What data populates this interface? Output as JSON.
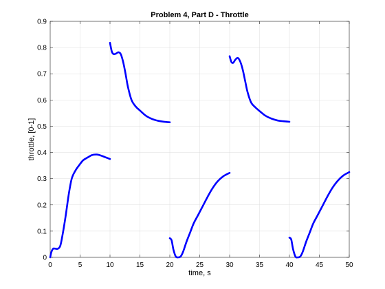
{
  "chart_data": {
    "type": "line",
    "title": "Problem 4, Part D - Throttle",
    "xlabel": "time, s",
    "ylabel": "throttle, [0-1]",
    "xlim": [
      0,
      50
    ],
    "ylim": [
      0,
      0.9
    ],
    "xticks": [
      0,
      5,
      10,
      15,
      20,
      25,
      30,
      35,
      40,
      45,
      50
    ],
    "yticks": [
      0,
      0.1,
      0.2,
      0.3,
      0.4,
      0.5,
      0.6,
      0.7,
      0.8,
      0.9
    ],
    "grid": true,
    "color": "#0000ff",
    "segments": [
      {
        "x": [
          0,
          0.2,
          0.5,
          0.9,
          1.3,
          1.7,
          2.1,
          2.6,
          3.1,
          3.6,
          4.2,
          4.8,
          5.5,
          6.2,
          7.0,
          7.8,
          8.5,
          9.2,
          10.0
        ],
        "y": [
          0.0,
          0.02,
          0.033,
          0.033,
          0.033,
          0.045,
          0.09,
          0.16,
          0.24,
          0.3,
          0.33,
          0.35,
          0.37,
          0.38,
          0.39,
          0.392,
          0.388,
          0.382,
          0.375
        ]
      },
      {
        "x": [
          10.0,
          10.3,
          10.6,
          11.0,
          11.4,
          11.8,
          12.2,
          12.6,
          13.0,
          13.6,
          14.3,
          15.0,
          16.0,
          17.0,
          18.0,
          19.0,
          20.0
        ],
        "y": [
          0.818,
          0.785,
          0.775,
          0.777,
          0.782,
          0.775,
          0.745,
          0.7,
          0.65,
          0.6,
          0.575,
          0.56,
          0.54,
          0.528,
          0.521,
          0.517,
          0.515
        ]
      },
      {
        "x": [
          20.0,
          20.3,
          20.6,
          21.0,
          21.4,
          21.8,
          22.2,
          22.8,
          23.4,
          24.0,
          24.7,
          25.5,
          26.3,
          27.1,
          28.0,
          29.0,
          30.0
        ],
        "y": [
          0.073,
          0.065,
          0.03,
          0.003,
          0.0,
          0.003,
          0.02,
          0.06,
          0.095,
          0.13,
          0.16,
          0.195,
          0.23,
          0.262,
          0.29,
          0.31,
          0.322
        ]
      },
      {
        "x": [
          30.0,
          30.3,
          30.6,
          31.0,
          31.4,
          31.8,
          32.2,
          32.6,
          33.0,
          33.6,
          34.3,
          35.0,
          36.0,
          37.0,
          38.0,
          39.0,
          40.0
        ],
        "y": [
          0.767,
          0.745,
          0.742,
          0.755,
          0.76,
          0.745,
          0.715,
          0.672,
          0.63,
          0.59,
          0.572,
          0.558,
          0.54,
          0.529,
          0.522,
          0.519,
          0.517
        ]
      },
      {
        "x": [
          40.0,
          40.3,
          40.6,
          41.0,
          41.4,
          41.8,
          42.2,
          42.8,
          43.4,
          44.0,
          44.7,
          45.5,
          46.3,
          47.1,
          48.0,
          49.0,
          50.0
        ],
        "y": [
          0.075,
          0.068,
          0.032,
          0.003,
          0.0,
          0.003,
          0.02,
          0.06,
          0.095,
          0.13,
          0.16,
          0.195,
          0.23,
          0.262,
          0.29,
          0.312,
          0.325
        ]
      }
    ]
  }
}
